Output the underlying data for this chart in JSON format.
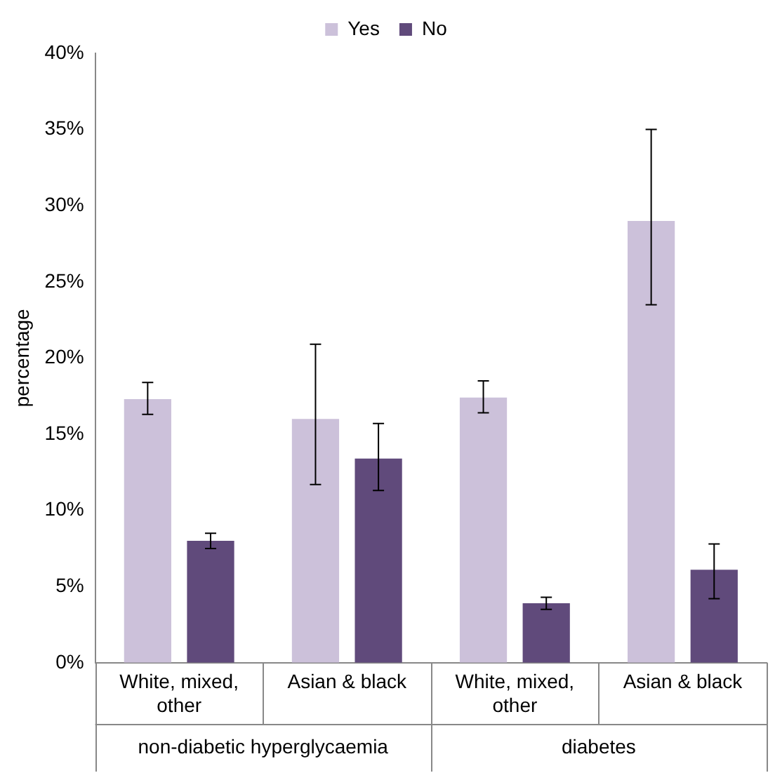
{
  "chart_data": {
    "type": "bar",
    "ylabel": "percentage",
    "categories": [
      "White, mixed, other",
      "Asian & black",
      "White, mixed, other",
      "Asian & black"
    ],
    "series": [
      {
        "name": "Yes",
        "color": "#ccc1da",
        "values": [
          17.3,
          16.0,
          17.4,
          29.0
        ],
        "errors": [
          [
            16.3,
            18.4
          ],
          [
            11.7,
            20.9
          ],
          [
            16.4,
            18.5
          ],
          [
            23.5,
            35.0
          ]
        ]
      },
      {
        "name": "No",
        "color": "#604a7b",
        "values": [
          8.0,
          13.4,
          3.9,
          6.1
        ],
        "errors": [
          [
            7.5,
            8.5
          ],
          [
            11.3,
            15.7
          ],
          [
            3.5,
            4.3
          ],
          [
            4.2,
            7.8
          ]
        ]
      }
    ],
    "ylim": [
      0,
      40
    ],
    "yticks": [
      {
        "value": 0,
        "label": "0%"
      },
      {
        "value": 5,
        "label": "5%"
      },
      {
        "value": 10,
        "label": "10%"
      },
      {
        "value": 15,
        "label": "15%"
      },
      {
        "value": 20,
        "label": "20%"
      },
      {
        "value": 25,
        "label": "25%"
      },
      {
        "value": 30,
        "label": "30%"
      },
      {
        "value": 35,
        "label": "35%"
      },
      {
        "value": 40,
        "label": "40%"
      }
    ],
    "annotations": [
      "non-diabetic hyperglycaemia",
      "diabetes"
    ],
    "grid": false,
    "legend": "top"
  }
}
